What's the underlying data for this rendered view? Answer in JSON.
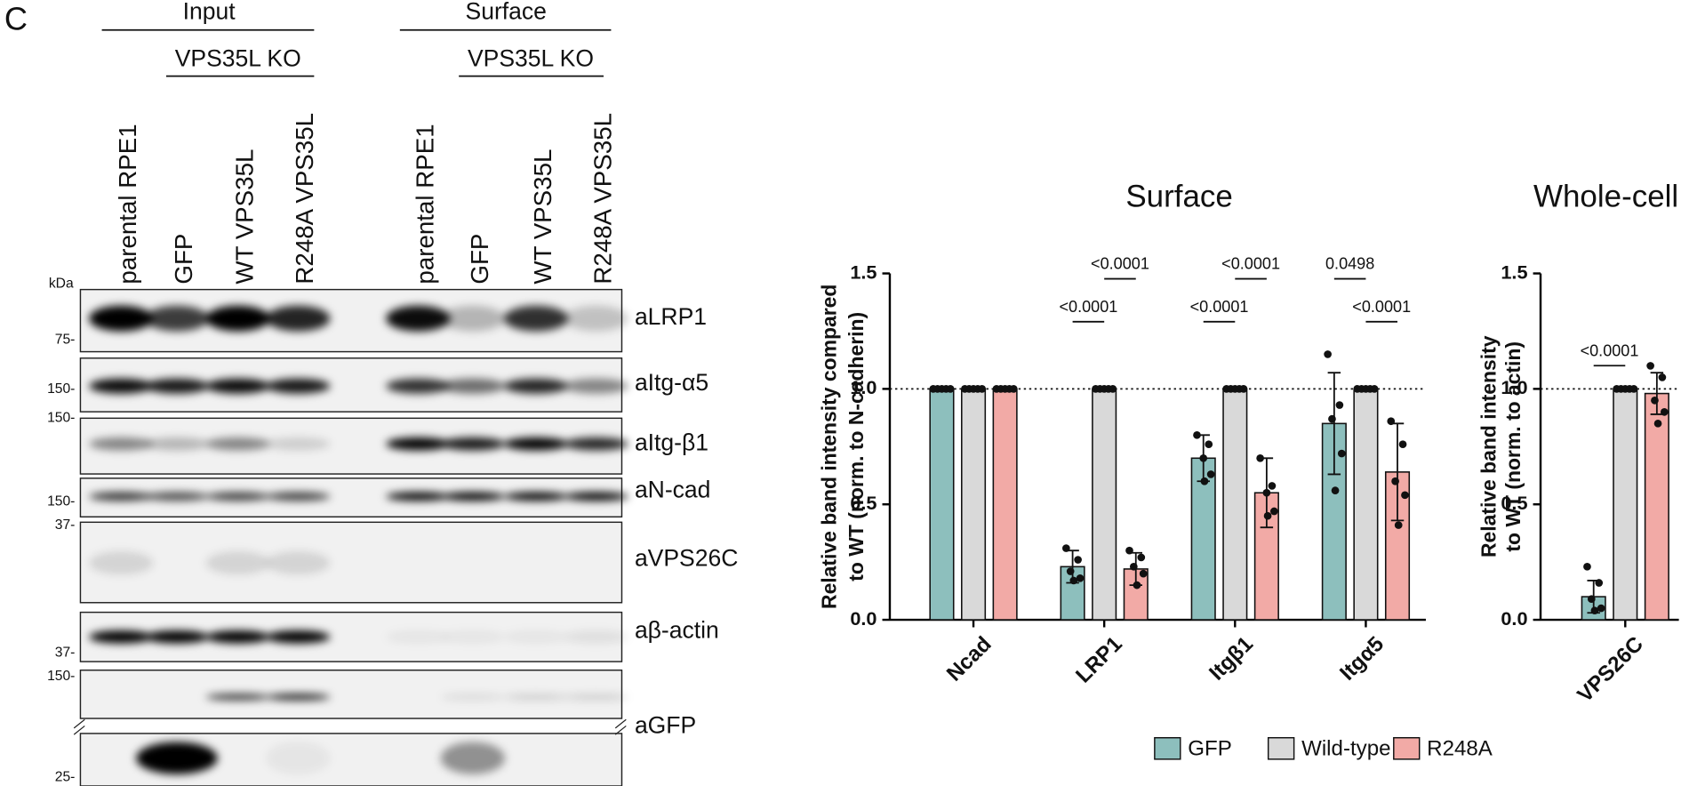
{
  "blot": {
    "panel": "C",
    "kda_label": "kDa",
    "groups": [
      {
        "label": "Input",
        "subgroup": "VPS35L KO",
        "lanes": [
          "parental RPE1",
          "GFP",
          "WT VPS35L",
          "R248A  VPS35L"
        ]
      },
      {
        "label": "Surface",
        "subgroup": "VPS35L KO",
        "lanes": [
          "parental RPE1",
          "GFP",
          "WT VPS35L",
          "R248A  VPS35L"
        ]
      }
    ],
    "rows": [
      {
        "antibody": "aLRP1",
        "markers": [
          "75-"
        ]
      },
      {
        "antibody": "aItg-α5",
        "markers": [
          "150-"
        ]
      },
      {
        "antibody": "aItg-β1",
        "markers": [
          "150-"
        ]
      },
      {
        "antibody": "aN-cad",
        "markers": [
          "150-"
        ]
      },
      {
        "antibody": "aVPS26C",
        "markers": [
          "37-"
        ]
      },
      {
        "antibody": "aβ-actin",
        "markers": [
          "37-"
        ]
      },
      {
        "antibody": "aGFP",
        "markers": [
          "150-",
          "25-"
        ]
      }
    ]
  },
  "chart_data": [
    {
      "type": "bar",
      "title": "Surface",
      "y_label": [
        "Relative band intensity compared",
        "to WT (norm. to N-cadherin)"
      ],
      "categories": [
        "Ncad",
        "LRP1",
        "Itgβ1",
        "Itgα5"
      ],
      "series": [
        {
          "name": "GFP",
          "color": "#8dbfbd",
          "values": [
            1,
            0.23,
            0.7,
            0.85
          ],
          "errors": [
            0,
            0.07,
            0.1,
            0.22
          ],
          "points": [
            [
              1,
              1,
              1,
              1,
              1
            ],
            [
              0.31,
              0.26,
              0.21,
              0.18,
              0.17
            ],
            [
              0.8,
              0.76,
              0.7,
              0.63,
              0.6
            ],
            [
              1.15,
              0.93,
              0.87,
              0.72,
              0.56
            ]
          ]
        },
        {
          "name": "Wild-type",
          "color": "#d9d9d9",
          "values": [
            1,
            1,
            1,
            1
          ],
          "errors": [
            0,
            0,
            0,
            0
          ],
          "points": [
            [
              1,
              1,
              1,
              1,
              1
            ],
            [
              1,
              1,
              1,
              1,
              1
            ],
            [
              1,
              1,
              1,
              1,
              1
            ],
            [
              1,
              1,
              1,
              1,
              1
            ]
          ]
        },
        {
          "name": "R248A",
          "color": "#f2aaa6",
          "values": [
            1,
            0.22,
            0.55,
            0.64
          ],
          "errors": [
            0,
            0.07,
            0.15,
            0.21
          ],
          "points": [
            [
              1,
              1,
              1,
              1,
              1
            ],
            [
              0.3,
              0.27,
              0.23,
              0.2,
              0.15
            ],
            [
              0.7,
              0.58,
              0.55,
              0.47,
              0.45
            ],
            [
              0.86,
              0.76,
              0.6,
              0.54,
              0.41
            ]
          ]
        }
      ],
      "ylim": [
        0,
        1.5
      ],
      "yticks": [
        {
          "value": 0,
          "label": "0.0"
        },
        {
          "value": 0.5,
          "label": "0.5"
        },
        {
          "value": 1,
          "label": "1.0"
        },
        {
          "value": 1.5,
          "label": "1.5"
        }
      ],
      "reference_line": 1,
      "legend": true,
      "annotations": [
        {
          "category": "LRP1",
          "series": [
            "GFP",
            "Wild-type"
          ],
          "text": "<0.0001"
        },
        {
          "category": "LRP1",
          "series": [
            "Wild-type",
            "R248A"
          ],
          "text": "<0.0001"
        },
        {
          "category": "Itgβ1",
          "series": [
            "GFP",
            "Wild-type"
          ],
          "text": "<0.0001"
        },
        {
          "category": "Itgβ1",
          "series": [
            "Wild-type",
            "R248A"
          ],
          "text": "<0.0001"
        },
        {
          "category": "Itgα5",
          "series": [
            "Wild-type",
            "R248A"
          ],
          "text": "<0.0001"
        },
        {
          "category": "Itgα5",
          "series": [
            "GFP",
            "Wild-type"
          ],
          "text": "0.0498"
        }
      ]
    },
    {
      "type": "bar",
      "title": "Whole-cell",
      "y_label": [
        "Relative band intensity",
        "to WT (norm. to actin)"
      ],
      "categories": [
        "VPS26C"
      ],
      "series": [
        {
          "name": "GFP",
          "color": "#8dbfbd",
          "values": [
            0.1
          ],
          "errors": [
            0.07
          ],
          "points": [
            [
              0.23,
              0.16,
              0.09,
              0.05,
              0.04
            ]
          ]
        },
        {
          "name": "Wild-type",
          "color": "#d9d9d9",
          "values": [
            1
          ],
          "errors": [
            0
          ],
          "points": [
            [
              1,
              1,
              1,
              1,
              1
            ]
          ]
        },
        {
          "name": "R248A",
          "color": "#f2aaa6",
          "values": [
            0.98
          ],
          "errors": [
            0.09
          ],
          "points": [
            [
              1.1,
              1.05,
              0.95,
              0.9,
              0.85
            ]
          ]
        }
      ],
      "ylim": [
        0,
        1.5
      ],
      "yticks": [
        {
          "value": 0,
          "label": "0.0"
        },
        {
          "value": 0.5,
          "label": "0.5"
        },
        {
          "value": 1,
          "label": "1.0"
        },
        {
          "value": 1.5,
          "label": "1.5"
        }
      ],
      "reference_line": 1,
      "legend": false,
      "annotations": [
        {
          "category": "VPS26C",
          "series": [
            "GFP",
            "Wild-type"
          ],
          "text": "<0.0001"
        }
      ]
    }
  ]
}
